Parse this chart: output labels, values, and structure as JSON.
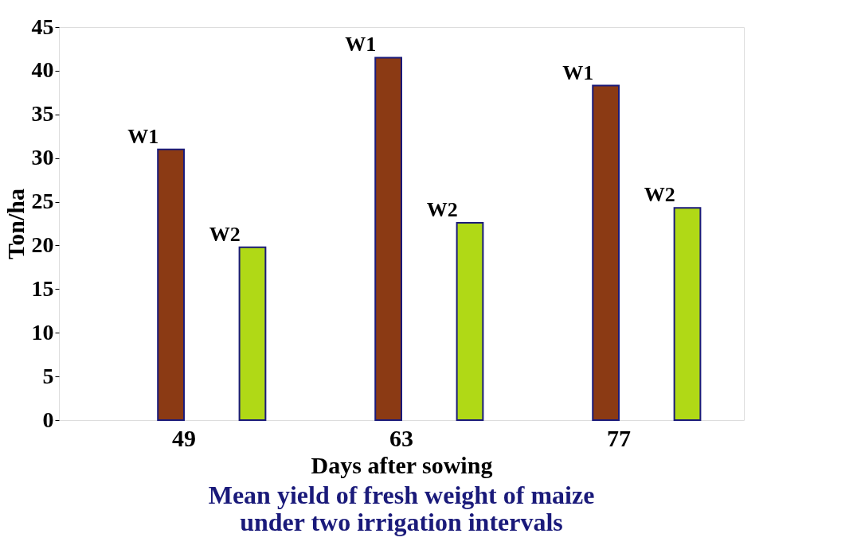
{
  "chart_data": {
    "type": "bar",
    "title": "Mean yield of fresh weight of maize\nunder two irrigation intervals",
    "xlabel": "Days after sowing",
    "ylabel": "Ton/ha",
    "categories": [
      "49",
      "63",
      "77"
    ],
    "series": [
      {
        "name": "W1",
        "color": "#8b3a14",
        "values": [
          31.0,
          41.5,
          38.3
        ]
      },
      {
        "name": "W2",
        "color": "#b0d916",
        "values": [
          19.8,
          22.6,
          24.3
        ]
      }
    ],
    "ylim": [
      0,
      45
    ],
    "yticks": [
      0,
      5,
      10,
      15,
      20,
      25,
      30,
      35,
      40,
      45
    ],
    "grid": false,
    "legend": false
  }
}
